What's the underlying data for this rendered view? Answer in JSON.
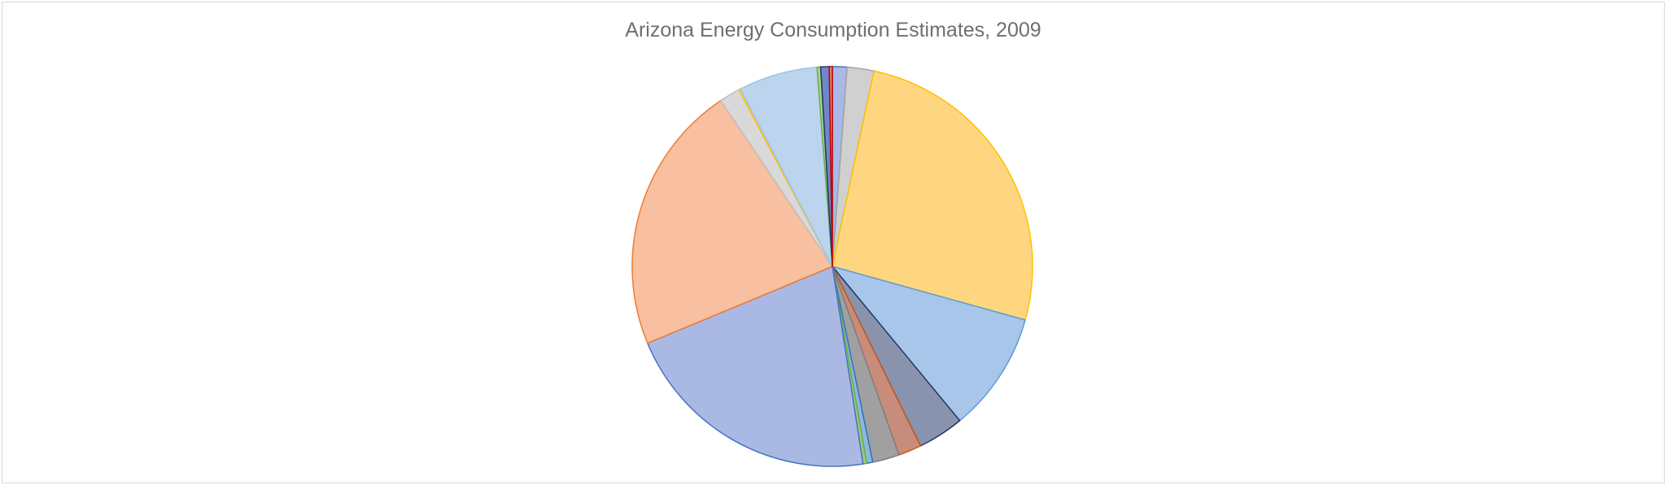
{
  "chart_data": {
    "type": "pie",
    "title": "Arizona Energy Consumption Estimates, 2009",
    "legend": "none",
    "slices": [
      {
        "value": 1.2,
        "fill": "#a9b8e6",
        "stroke": "#4472c4"
      },
      {
        "value": 2.2,
        "fill": "#d0d0d0",
        "stroke": "#a5a5a5"
      },
      {
        "value": 26.5,
        "fill": "#ffd680",
        "stroke": "#ffc000"
      },
      {
        "value": 9.9,
        "fill": "#a8c6ea",
        "stroke": "#5b9bd5"
      },
      {
        "value": 3.8,
        "fill": "#8a93ad",
        "stroke": "#203864"
      },
      {
        "value": 1.9,
        "fill": "#c88c7d",
        "stroke": "#c55a11"
      },
      {
        "value": 2.2,
        "fill": "#a0a0a0",
        "stroke": "#7f7f7f"
      },
      {
        "value": 0.5,
        "fill": "#8fb8e0",
        "stroke": "#2e75b6"
      },
      {
        "value": 0.3,
        "fill": "#9fc97a",
        "stroke": "#70ad47"
      },
      {
        "value": 21.6,
        "fill": "#aab9e4",
        "stroke": "#4472c4"
      },
      {
        "value": 22.3,
        "fill": "#f8bfa0",
        "stroke": "#ed7d31"
      },
      {
        "value": 1.7,
        "fill": "#d9d9d9",
        "stroke": "#bfbfbf"
      },
      {
        "value": 0.15,
        "fill": "#ffd966",
        "stroke": "#ffc000"
      },
      {
        "value": 6.5,
        "fill": "#bcd4ee",
        "stroke": "#9dc3e6"
      },
      {
        "value": 0.3,
        "fill": "#a9d18e",
        "stroke": "#70ad47"
      },
      {
        "value": 0.7,
        "fill": "#6f86c8",
        "stroke": "#203864"
      },
      {
        "value": 0.25,
        "fill": "#e08a6a",
        "stroke": "#c00000"
      }
    ]
  }
}
